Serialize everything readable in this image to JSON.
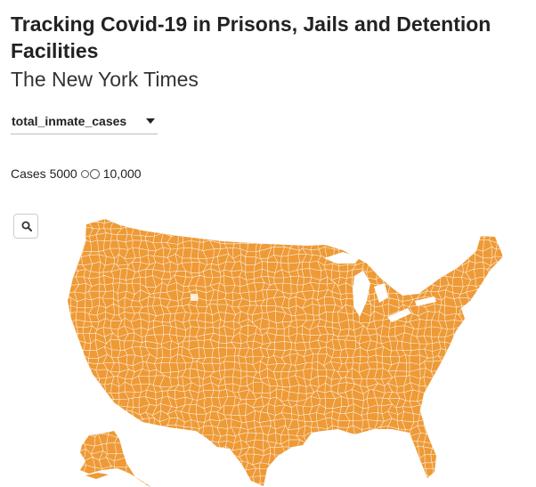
{
  "header": {
    "title": "Tracking Covid-19 in Prisons, Jails and Detention Facilities",
    "source": "The New York Times"
  },
  "metric_select": {
    "value": "total_inmate_cases"
  },
  "legend": {
    "label": "Cases",
    "small_value": "5000",
    "large_value": "10,000"
  },
  "controls": {
    "zoom_icon": "magnifier-icon"
  },
  "map": {
    "region": "United States counties",
    "fill_color": "#ee9a36",
    "border_color": "#ffffff"
  }
}
